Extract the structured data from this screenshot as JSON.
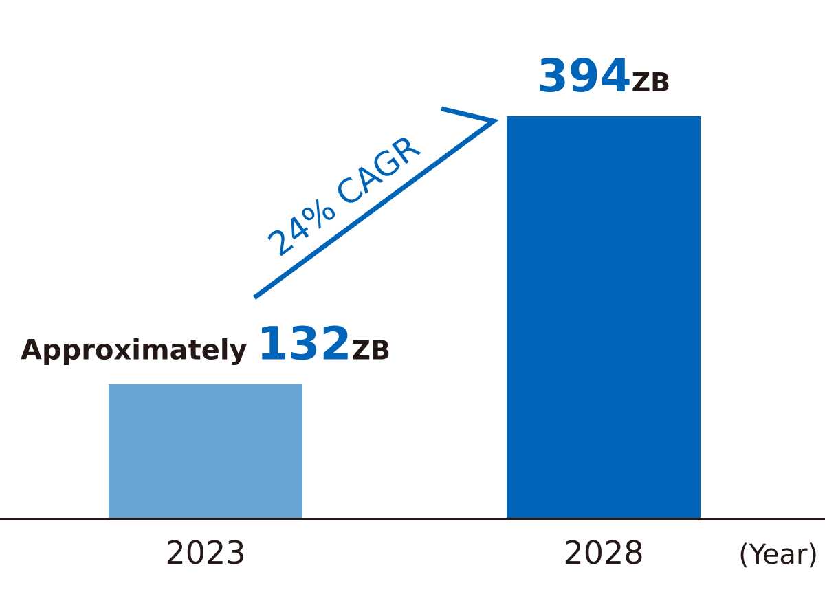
{
  "chart_data": {
    "type": "bar",
    "categories": [
      "2023",
      "2028"
    ],
    "values": [
      132,
      394
    ],
    "unit": "ZB",
    "xlabel": "(Year)",
    "ylabel": "",
    "ylim": [
      0,
      400
    ],
    "grid": false,
    "data_labels": [
      {
        "prefix": "Approximately ",
        "value": "132",
        "unit": "ZB"
      },
      {
        "prefix": "",
        "value": "394",
        "unit": "ZB"
      }
    ],
    "annotation": {
      "text": "24% CAGR"
    }
  },
  "colors": {
    "bars": [
      "#68a3d5",
      "#0064b9"
    ],
    "accent": "#0064b9",
    "text_dark": "#231815",
    "axis": "#231815"
  }
}
